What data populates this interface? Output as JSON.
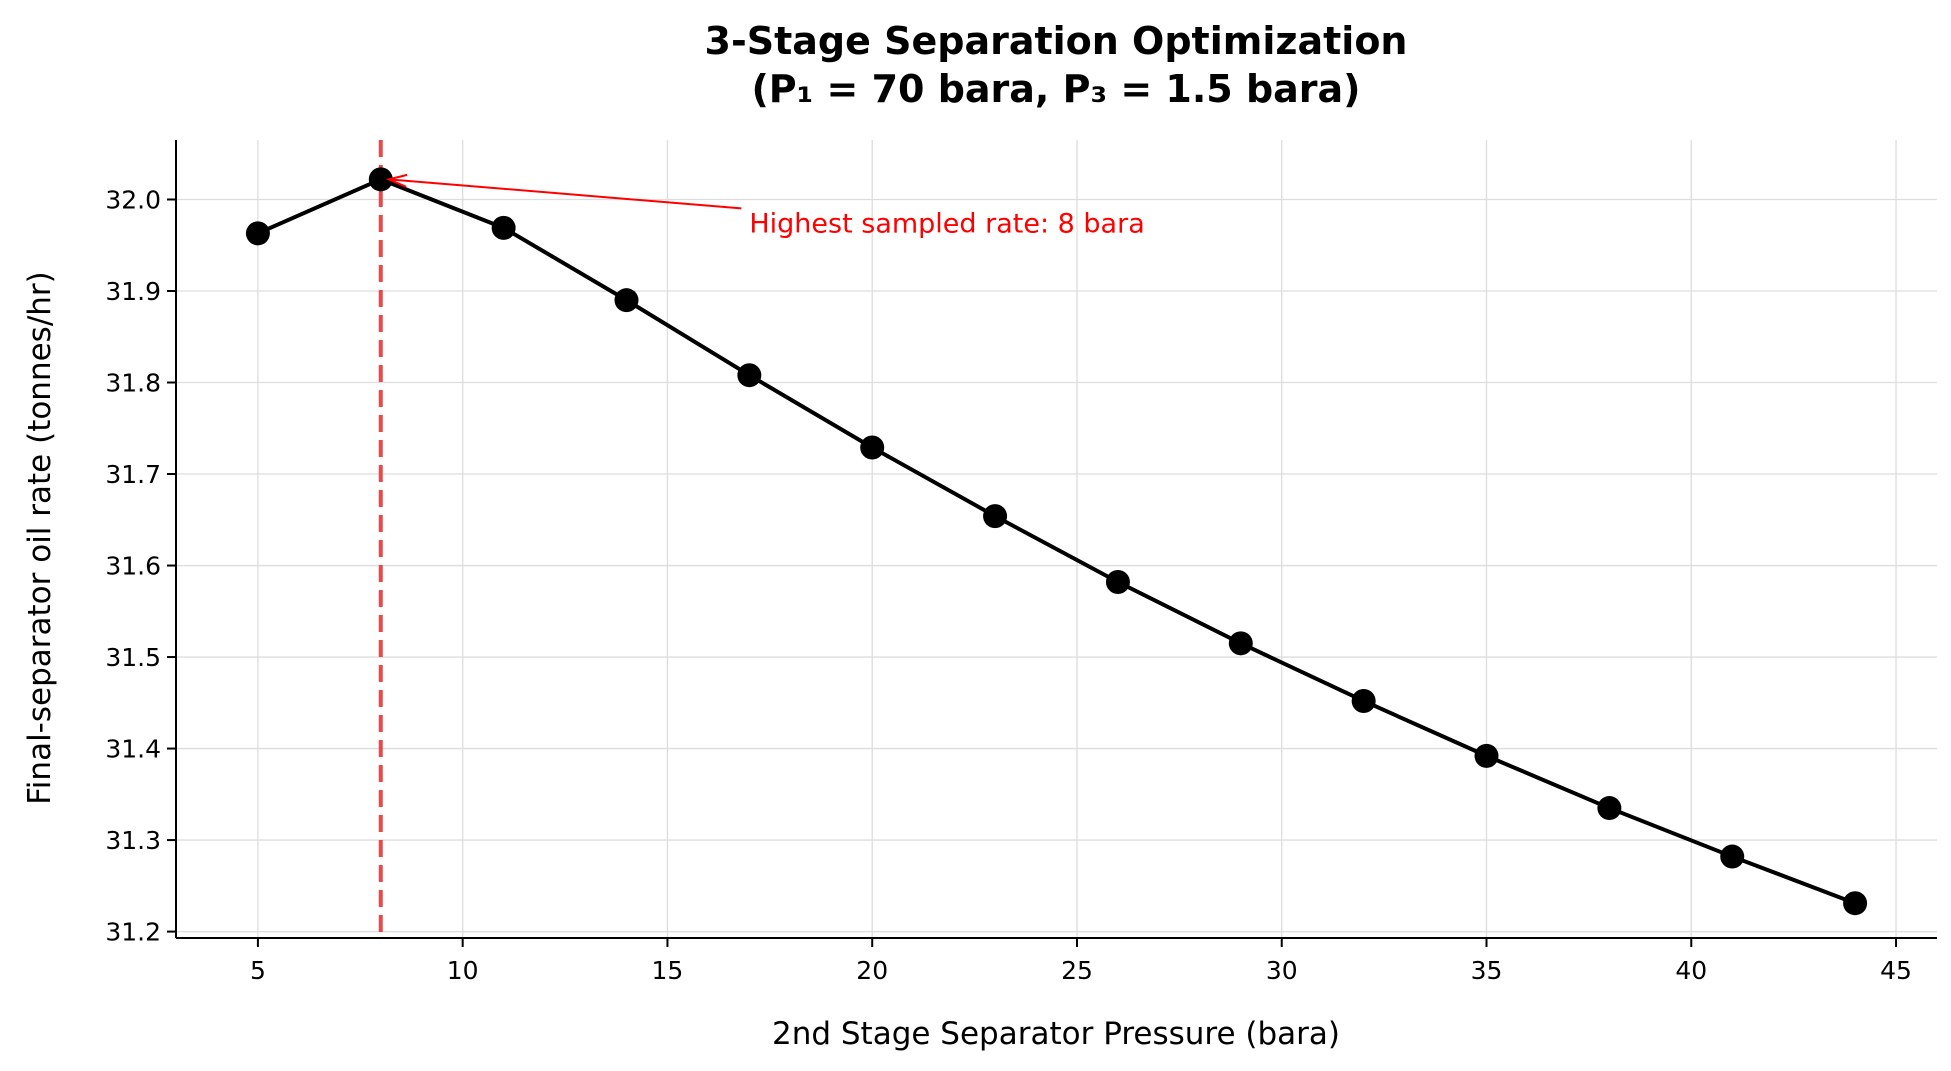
{
  "chart_data": {
    "type": "line",
    "title": "3-Stage Separation Optimization",
    "subtitle": "(P₁ = 70 bara, P₃ = 1.5 bara)",
    "xlabel": "2nd Stage Separator Pressure (bara)",
    "ylabel": "Final-separator oil rate (tonnes/hr)",
    "xlim": [
      3,
      46
    ],
    "ylim": [
      31.193,
      32.065
    ],
    "xticks": [
      5,
      10,
      15,
      20,
      25,
      30,
      35,
      40,
      45
    ],
    "yticks": [
      31.2,
      31.3,
      31.4,
      31.5,
      31.6,
      31.7,
      31.8,
      31.9,
      32.0
    ],
    "xtick_labels": [
      "5",
      "10",
      "15",
      "20",
      "25",
      "30",
      "35",
      "40",
      "45"
    ],
    "ytick_labels": [
      "31.2",
      "31.3",
      "31.4",
      "31.5",
      "31.6",
      "31.7",
      "31.8",
      "31.9",
      "32.0"
    ],
    "grid": true,
    "series": [
      {
        "x": [
          5,
          8,
          11,
          14,
          17,
          20,
          23,
          26,
          29,
          32,
          35,
          38,
          41,
          44
        ],
        "values": [
          31.963,
          32.022,
          31.969,
          31.89,
          31.808,
          31.729,
          31.654,
          31.582,
          31.515,
          31.452,
          31.392,
          31.335,
          31.282,
          31.231
        ],
        "color": "#000000",
        "marker": "circle"
      }
    ],
    "vline": {
      "x": 8,
      "color": "#e84a4a",
      "style": "dashed"
    },
    "annotation": {
      "text": "Highest sampled rate: 8 bara",
      "point": [
        8,
        32.022
      ],
      "text_pos": [
        17,
        31.975
      ],
      "color": "#ff0000"
    }
  }
}
